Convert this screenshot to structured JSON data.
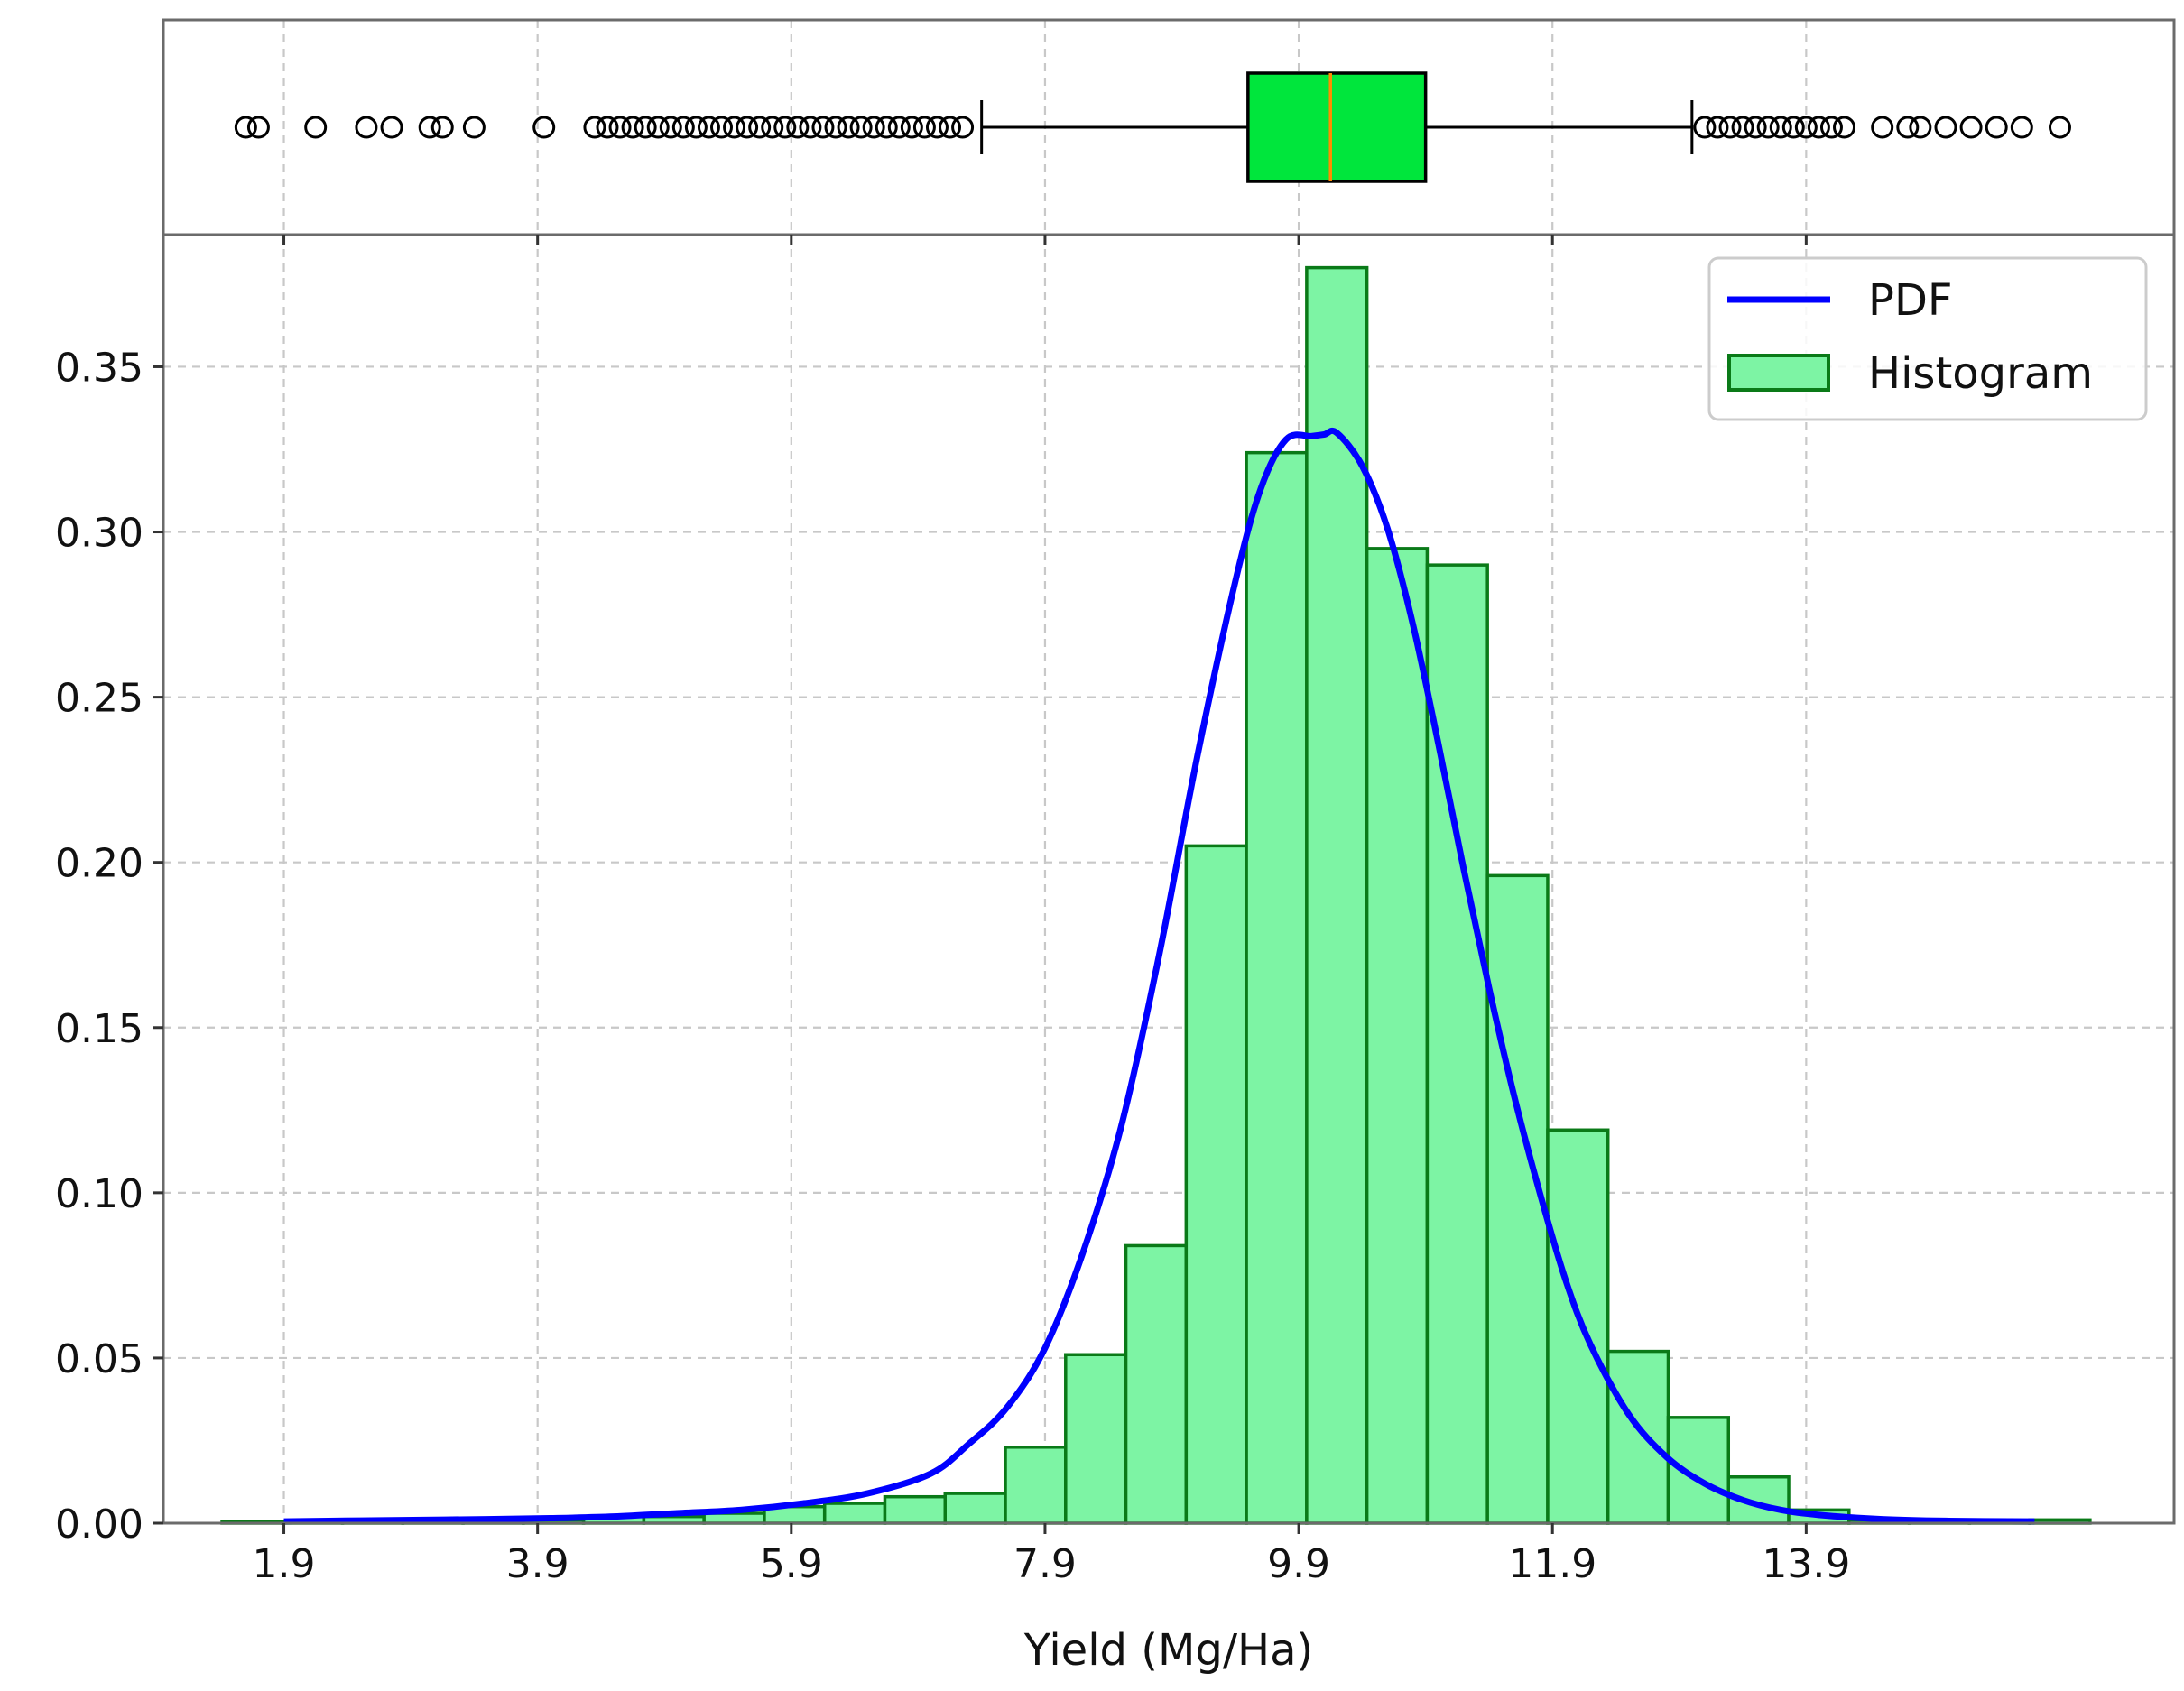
{
  "chart_data": {
    "type": "bar",
    "xlabel": "Yield (Mg/Ha)",
    "ylabel": "",
    "xlim": [
      0.95,
      16.8
    ],
    "ylim": [
      0,
      0.39
    ],
    "x_ticks": [
      "1.9",
      "3.9",
      "5.9",
      "7.9",
      "9.9",
      "11.9",
      "13.9"
    ],
    "y_ticks": [
      "0.00",
      "0.05",
      "0.10",
      "0.15",
      "0.20",
      "0.25",
      "0.30",
      "0.35"
    ],
    "grid": true,
    "legend_position": "top-right",
    "legend": [
      {
        "label": "PDF",
        "kind": "line",
        "color": "#0000ff"
      },
      {
        "label": "Histogram",
        "kind": "patch",
        "color": "#7df4a4",
        "edge": "#0a7a18"
      }
    ],
    "series": [
      {
        "name": "Histogram",
        "type": "bar",
        "bin_width": 0.475,
        "x": [
          1.65,
          2.125,
          2.6,
          3.075,
          3.55,
          4.025,
          4.5,
          4.975,
          5.45,
          5.925,
          6.4,
          6.875,
          7.35,
          7.825,
          8.3,
          8.775,
          9.25,
          9.725,
          10.2,
          10.675,
          11.15,
          11.625,
          12.1,
          12.575,
          13.05,
          13.525,
          14.0,
          14.475,
          14.95,
          15.425,
          15.9
        ],
        "values": [
          0.0005,
          0.0005,
          0.0005,
          0.0005,
          0.0005,
          0.001,
          0.002,
          0.002,
          0.003,
          0.005,
          0.006,
          0.008,
          0.009,
          0.023,
          0.051,
          0.084,
          0.205,
          0.324,
          0.38,
          0.295,
          0.29,
          0.196,
          0.119,
          0.052,
          0.032,
          0.014,
          0.004,
          0.001,
          0.0005,
          0.0005,
          0.001
        ],
        "fill": "#7df4a4",
        "edge": "#0a7a18"
      },
      {
        "name": "PDF",
        "type": "line",
        "color": "#0000ff",
        "x": [
          1.9,
          2.5,
          3.0,
          3.5,
          4.0,
          4.5,
          5.0,
          5.5,
          6.0,
          6.5,
          7.0,
          7.3,
          7.6,
          7.9,
          8.2,
          8.5,
          8.8,
          9.1,
          9.4,
          9.6,
          9.8,
          10.0,
          10.1,
          10.2,
          10.4,
          10.6,
          10.8,
          11.0,
          11.2,
          11.4,
          11.6,
          11.8,
          12.0,
          12.2,
          12.5,
          12.8,
          13.1,
          13.4,
          13.7,
          14.0,
          14.5,
          15.0,
          15.7
        ],
        "values": [
          0.0005,
          0.0008,
          0.001,
          0.0012,
          0.0015,
          0.002,
          0.003,
          0.004,
          0.006,
          0.009,
          0.015,
          0.024,
          0.035,
          0.053,
          0.082,
          0.12,
          0.172,
          0.232,
          0.285,
          0.313,
          0.328,
          0.329,
          0.3295,
          0.33,
          0.32,
          0.301,
          0.272,
          0.236,
          0.198,
          0.162,
          0.129,
          0.1,
          0.074,
          0.054,
          0.033,
          0.02,
          0.012,
          0.007,
          0.004,
          0.0025,
          0.0012,
          0.0007,
          0.0005
        ]
      }
    ],
    "boxplot": {
      "orientation": "horizontal",
      "q1": 9.5,
      "median": 10.15,
      "q3": 10.9,
      "whisker_low": 7.4,
      "whisker_high": 13.0,
      "box_color": "#00e63c",
      "median_color": "#ff8c00",
      "outliers": [
        1.6,
        1.7,
        2.15,
        2.55,
        2.75,
        3.05,
        3.15,
        3.4,
        3.95,
        4.35,
        4.45,
        4.55,
        4.65,
        4.75,
        4.85,
        4.95,
        5.05,
        5.15,
        5.25,
        5.35,
        5.45,
        5.55,
        5.65,
        5.75,
        5.85,
        5.95,
        6.05,
        6.15,
        6.25,
        6.35,
        6.45,
        6.55,
        6.65,
        6.75,
        6.85,
        6.95,
        7.05,
        7.15,
        7.25,
        13.1,
        13.2,
        13.3,
        13.4,
        13.5,
        13.6,
        13.7,
        13.8,
        13.9,
        14.0,
        14.1,
        14.2,
        14.5,
        14.7,
        14.8,
        15.0,
        15.2,
        15.4,
        15.6,
        15.9
      ]
    }
  }
}
